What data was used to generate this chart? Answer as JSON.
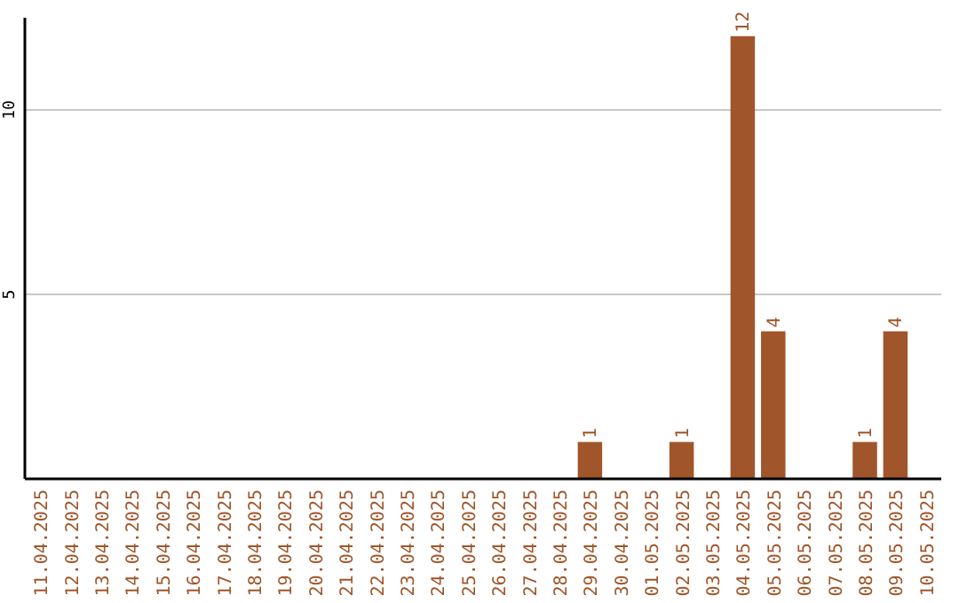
{
  "chart_data": {
    "type": "bar",
    "categories": [
      "11.04.2025",
      "12.04.2025",
      "13.04.2025",
      "14.04.2025",
      "15.04.2025",
      "16.04.2025",
      "17.04.2025",
      "18.04.2025",
      "19.04.2025",
      "20.04.2025",
      "21.04.2025",
      "22.04.2025",
      "23.04.2025",
      "24.04.2025",
      "25.04.2025",
      "26.04.2025",
      "27.04.2025",
      "28.04.2025",
      "29.04.2025",
      "30.04.2025",
      "01.05.2025",
      "02.05.2025",
      "03.05.2025",
      "04.05.2025",
      "05.05.2025",
      "06.05.2025",
      "07.05.2025",
      "08.05.2025",
      "09.05.2025",
      "10.05.2025"
    ],
    "values": [
      0,
      0,
      0,
      0,
      0,
      0,
      0,
      0,
      0,
      0,
      0,
      0,
      0,
      0,
      0,
      0,
      0,
      0,
      1,
      0,
      0,
      1,
      0,
      12,
      4,
      0,
      0,
      1,
      4,
      0
    ],
    "value_labels": [
      null,
      null,
      null,
      null,
      null,
      null,
      null,
      null,
      null,
      null,
      null,
      null,
      null,
      null,
      null,
      null,
      null,
      null,
      "1",
      null,
      null,
      "1",
      null,
      "12",
      "4",
      null,
      null,
      "1",
      "4",
      null
    ],
    "color": "#a0562a",
    "ylim": [
      0,
      12.5
    ],
    "yticks": [
      5,
      10
    ],
    "grid": "y"
  }
}
